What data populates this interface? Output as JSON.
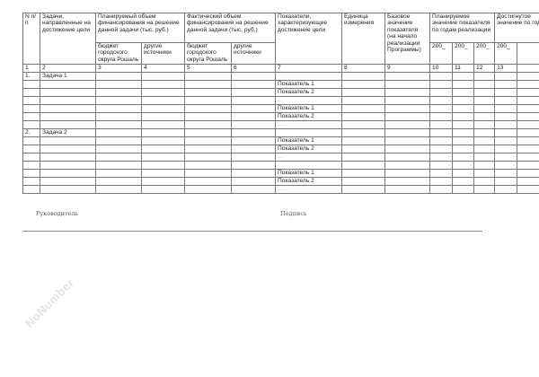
{
  "watermark": "NoNumber",
  "header": {
    "c1": "N п/п",
    "c2": "Задачи, направленные на достижение цели",
    "c3_6_planned": "Планируемый объем финансирования на решение данной задачи (тыс. руб.)",
    "c3_6_actual": "Фактический объем финансирования на решение данной задачи (тыс. руб.)",
    "budget": "бюджет городского округа Рошаль",
    "other": "другие источники",
    "c7": "Показатели, характеризующие достижение цели",
    "c8": "Единица измерения",
    "c9": "Базовое значение показателя (на начало реализации Программы)",
    "c10_12": "Планируемое значение показателя по годам реализации",
    "c13": "Достигнутое значение по годам",
    "year": "200_"
  },
  "numbers": [
    "1",
    "2",
    "3",
    "4",
    "5",
    "6",
    "7",
    "8",
    "9",
    "10",
    "11",
    "12",
    "13",
    ""
  ],
  "rows": [
    {
      "n": "1.",
      "task": "Задача 1",
      "ind": ""
    },
    {
      "n": "",
      "task": "",
      "ind": "Показатель 1"
    },
    {
      "n": "",
      "task": "",
      "ind": "Показатель 2"
    },
    {
      "n": "",
      "task": "",
      "ind": "...",
      "dots": true
    },
    {
      "n": "",
      "task": "",
      "ind": "Показатель 1"
    },
    {
      "n": "",
      "task": "",
      "ind": "Показатель 2"
    },
    {
      "n": "",
      "task": "",
      "ind": "...",
      "dots": true
    },
    {
      "n": "2.",
      "task": "Задача 2",
      "ind": ""
    },
    {
      "n": "",
      "task": "",
      "ind": "Показатель 1"
    },
    {
      "n": "",
      "task": "",
      "ind": "Показатель 2"
    },
    {
      "n": "",
      "task": "",
      "ind": "...",
      "dots": true
    },
    {
      "n": "",
      "task": "",
      "ind": ""
    },
    {
      "n": "",
      "task": "",
      "ind": "Показатель 1"
    },
    {
      "n": "",
      "task": "",
      "ind": "Показатель 2"
    },
    {
      "n": "",
      "task": "",
      "ind": "...",
      "dots": true
    }
  ],
  "footer": {
    "head": "Руководитель",
    "signature": "Подпись"
  }
}
